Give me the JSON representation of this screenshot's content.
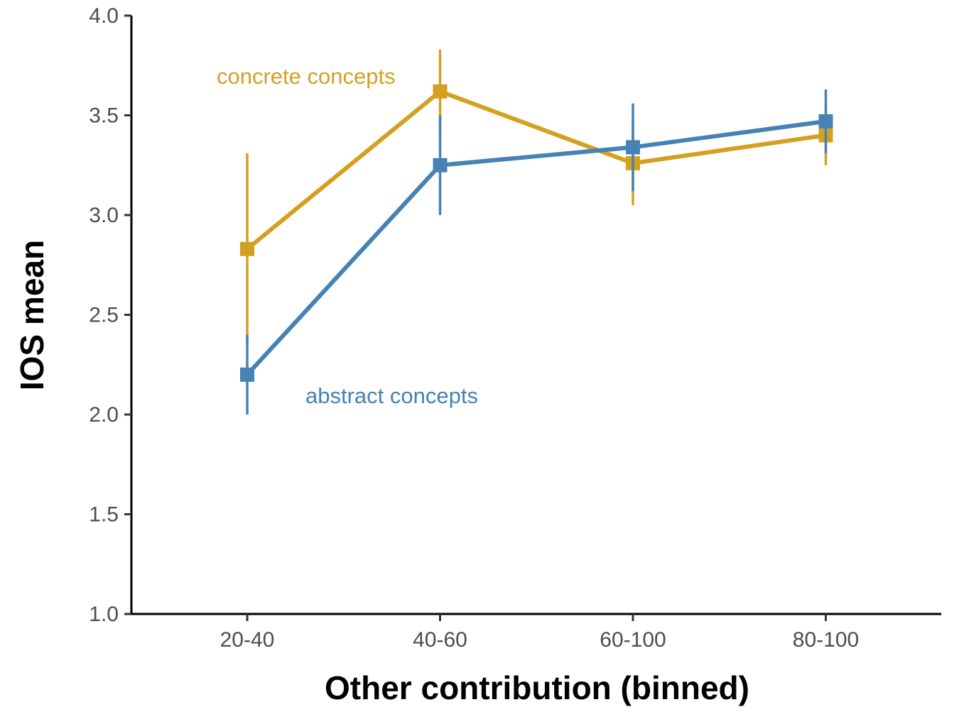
{
  "chart_data": {
    "type": "line",
    "xlabel": "Other contribution (binned)",
    "ylabel": "IOS mean",
    "categories": [
      "20-40",
      "40-60",
      "60-100",
      "80-100"
    ],
    "ylim": [
      1.0,
      4.0
    ],
    "yticks": [
      "1.0",
      "1.5",
      "2.0",
      "2.5",
      "3.0",
      "3.5",
      "4.0"
    ],
    "grid": false,
    "legend": "none (direct series labels)",
    "series": [
      {
        "name": "concrete concepts",
        "color": "#D4A020",
        "values": [
          2.83,
          3.62,
          3.26,
          3.4
        ],
        "err_low": [
          2.36,
          3.42,
          3.05,
          3.25
        ],
        "err_high": [
          3.31,
          3.83,
          3.47,
          3.55
        ]
      },
      {
        "name": "abstract concepts",
        "color": "#4682B4",
        "values": [
          2.2,
          3.25,
          3.34,
          3.47
        ],
        "err_low": [
          2.0,
          3.0,
          3.12,
          3.31
        ],
        "err_high": [
          2.4,
          3.5,
          3.56,
          3.63
        ]
      }
    ]
  }
}
